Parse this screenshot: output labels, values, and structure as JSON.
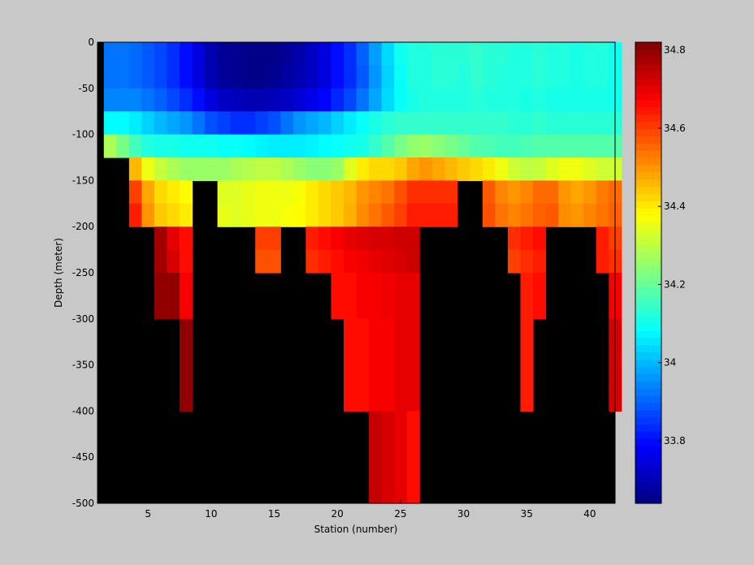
{
  "chart_data": {
    "type": "heatmap",
    "title": "",
    "xlabel": "Station (number)",
    "ylabel": "Depth (meter)",
    "xlim": [
      1,
      42
    ],
    "ylim": [
      -500,
      0
    ],
    "xticks": [
      5,
      10,
      15,
      20,
      25,
      30,
      35,
      40
    ],
    "yticks": [
      0,
      -50,
      -100,
      -150,
      -200,
      -250,
      -300,
      -350,
      -400,
      -450,
      -500
    ],
    "colorbar": {
      "colormap": "jet",
      "range": [
        33.64,
        34.82
      ],
      "ticks": [
        34.8,
        34.6,
        34.4,
        34.2,
        34,
        33.8
      ]
    },
    "background_color": "#000000",
    "stations": [
      2,
      3,
      4,
      5,
      6,
      7,
      8,
      9,
      10,
      11,
      12,
      13,
      14,
      15,
      16,
      17,
      18,
      19,
      20,
      21,
      22,
      23,
      24,
      25,
      26,
      27,
      28,
      29,
      30,
      31,
      32,
      33,
      34,
      35,
      36,
      37,
      38,
      39,
      40,
      41,
      42
    ],
    "depth_bin_tops": [
      -5,
      -25,
      -50,
      -75,
      -100,
      -125,
      -150,
      -175,
      -200,
      -225,
      -250,
      -275,
      -300,
      -325,
      -350,
      -375,
      -400,
      -425,
      -450,
      -475
    ],
    "bands": [
      {
        "depth": -5,
        "value": 33.92,
        "drift": [
          0,
          0,
          -0.01,
          -0.03,
          -0.05,
          -0.08,
          -0.12,
          -0.17,
          -0.22,
          -0.25,
          -0.26,
          -0.27,
          -0.27,
          -0.27,
          -0.25,
          -0.23,
          -0.2,
          -0.17,
          -0.12,
          -0.08,
          -0.02,
          0.05,
          0.12,
          0.18,
          0.2,
          0.2,
          0.21,
          0.21,
          0.21,
          0.22,
          0.21,
          0.21,
          0.2,
          0.2,
          0.21,
          0.2,
          0.2,
          0.19,
          0.2,
          0.2,
          0.18
        ]
      },
      {
        "depth": -25,
        "value": 33.92,
        "drift": [
          0,
          0,
          -0.01,
          -0.03,
          -0.05,
          -0.08,
          -0.12,
          -0.17,
          -0.22,
          -0.25,
          -0.26,
          -0.27,
          -0.27,
          -0.26,
          -0.24,
          -0.22,
          -0.2,
          -0.17,
          -0.12,
          -0.08,
          -0.03,
          0.04,
          0.11,
          0.17,
          0.2,
          0.2,
          0.21,
          0.21,
          0.2,
          0.22,
          0.21,
          0.2,
          0.2,
          0.2,
          0.21,
          0.2,
          0.2,
          0.19,
          0.2,
          0.2,
          0.18
        ]
      },
      {
        "depth": -50,
        "value": 33.94,
        "drift": [
          0,
          0,
          0,
          -0.02,
          -0.04,
          -0.07,
          -0.1,
          -0.14,
          -0.19,
          -0.22,
          -0.23,
          -0.24,
          -0.24,
          -0.23,
          -0.22,
          -0.2,
          -0.18,
          -0.15,
          -0.11,
          -0.07,
          -0.02,
          0.04,
          0.1,
          0.15,
          0.17,
          0.18,
          0.18,
          0.18,
          0.18,
          0.19,
          0.18,
          0.18,
          0.18,
          0.17,
          0.18,
          0.17,
          0.17,
          0.17,
          0.17,
          0.17,
          0.16
        ]
      },
      {
        "depth": -75,
        "value": 34.08,
        "drift": [
          0,
          0,
          -0.02,
          -0.05,
          -0.08,
          -0.1,
          -0.12,
          -0.16,
          -0.2,
          -0.22,
          -0.24,
          -0.24,
          -0.22,
          -0.2,
          -0.16,
          -0.12,
          -0.1,
          -0.08,
          -0.05,
          -0.02,
          0.01,
          0.03,
          0.05,
          0.06,
          0.06,
          0.06,
          0.06,
          0.06,
          0.06,
          0.06,
          0.06,
          0.06,
          0.05,
          0.05,
          0.06,
          0.05,
          0.05,
          0.05,
          0.05,
          0.05,
          0.05
        ]
      },
      {
        "depth": -100,
        "value": 34.28,
        "drift": [
          0,
          -0.06,
          -0.12,
          -0.16,
          -0.17,
          -0.17,
          -0.18,
          -0.18,
          -0.18,
          -0.19,
          -0.19,
          -0.2,
          -0.21,
          -0.22,
          -0.22,
          -0.22,
          -0.21,
          -0.2,
          -0.19,
          -0.18,
          -0.17,
          -0.14,
          -0.1,
          -0.06,
          -0.03,
          -0.02,
          -0.04,
          -0.06,
          -0.08,
          -0.1,
          -0.11,
          -0.12,
          -0.12,
          -0.11,
          -0.1,
          -0.1,
          -0.1,
          -0.1,
          -0.1,
          -0.1,
          -0.1
        ]
      },
      {
        "depth": -125,
        "value": 34.46,
        "drift": [
          null,
          null,
          0,
          -0.1,
          -0.15,
          -0.18,
          -0.2,
          -0.2,
          -0.2,
          -0.2,
          -0.18,
          -0.17,
          -0.16,
          -0.16,
          -0.18,
          -0.2,
          -0.22,
          -0.22,
          -0.2,
          -0.12,
          -0.06,
          -0.04,
          -0.04,
          -0.02,
          0.02,
          0.04,
          0.02,
          0,
          -0.02,
          -0.04,
          -0.06,
          -0.1,
          -0.14,
          -0.16,
          -0.15,
          -0.12,
          -0.1,
          -0.1,
          -0.12,
          -0.14,
          -0.14
        ]
      },
      {
        "depth": -150,
        "value": 34.6,
        "drift": [
          null,
          null,
          0,
          -0.12,
          -0.18,
          -0.2,
          -0.22,
          null,
          null,
          -0.26,
          -0.26,
          -0.25,
          -0.24,
          -0.24,
          -0.24,
          -0.23,
          -0.2,
          -0.18,
          -0.16,
          -0.14,
          -0.1,
          -0.08,
          -0.06,
          -0.02,
          0.02,
          0.02,
          0.02,
          0.02,
          null,
          null,
          -0.03,
          -0.08,
          -0.1,
          -0.08,
          -0.05,
          -0.05,
          -0.1,
          -0.12,
          -0.1,
          -0.07,
          -0.05
        ]
      },
      {
        "depth": -175,
        "value": 34.64,
        "drift": [
          null,
          null,
          0,
          -0.14,
          -0.2,
          -0.22,
          -0.24,
          null,
          null,
          -0.29,
          -0.3,
          -0.29,
          -0.28,
          -0.28,
          -0.27,
          -0.26,
          -0.24,
          -0.22,
          -0.2,
          -0.17,
          -0.13,
          -0.1,
          -0.07,
          -0.04,
          0,
          0,
          0,
          0,
          null,
          null,
          -0.06,
          -0.1,
          -0.12,
          -0.1,
          -0.08,
          -0.07,
          -0.13,
          -0.14,
          -0.12,
          -0.1,
          -0.08
        ]
      },
      {
        "depth": -200,
        "value": 34.78,
        "drift": [
          null,
          null,
          null,
          null,
          0,
          -0.08,
          -0.12,
          null,
          null,
          null,
          null,
          null,
          -0.18,
          -0.18,
          null,
          null,
          -0.14,
          -0.12,
          -0.1,
          -0.08,
          -0.07,
          -0.06,
          -0.06,
          -0.05,
          -0.05,
          null,
          null,
          null,
          null,
          null,
          null,
          null,
          -0.16,
          -0.14,
          -0.12,
          null,
          null,
          null,
          null,
          -0.14,
          -0.18
        ]
      },
      {
        "depth": -225,
        "value": 34.78,
        "drift": [
          null,
          null,
          null,
          null,
          0,
          -0.06,
          -0.12,
          null,
          null,
          null,
          null,
          null,
          -0.2,
          -0.2,
          null,
          null,
          -0.16,
          -0.14,
          -0.12,
          -0.1,
          -0.09,
          -0.08,
          -0.07,
          -0.06,
          -0.05,
          null,
          null,
          null,
          null,
          null,
          null,
          null,
          -0.18,
          -0.16,
          -0.14,
          null,
          null,
          null,
          null,
          -0.14,
          -0.16
        ]
      },
      {
        "depth": -250,
        "value": 34.8,
        "drift": [
          null,
          null,
          null,
          null,
          0,
          0,
          -0.12,
          null,
          null,
          null,
          null,
          null,
          null,
          null,
          null,
          null,
          null,
          null,
          -0.14,
          -0.14,
          -0.12,
          -0.12,
          -0.11,
          -0.1,
          -0.1,
          null,
          null,
          null,
          null,
          null,
          null,
          null,
          null,
          -0.16,
          -0.14,
          null,
          null,
          null,
          null,
          null,
          -0.12
        ]
      },
      {
        "depth": -275,
        "value": 34.8,
        "drift": [
          null,
          null,
          null,
          null,
          0,
          0,
          -0.12,
          null,
          null,
          null,
          null,
          null,
          null,
          null,
          null,
          null,
          null,
          null,
          -0.14,
          -0.14,
          -0.12,
          -0.12,
          -0.11,
          -0.1,
          -0.1,
          null,
          null,
          null,
          null,
          null,
          null,
          null,
          null,
          -0.16,
          -0.14,
          null,
          null,
          null,
          null,
          null,
          -0.12
        ]
      },
      {
        "depth": -300,
        "value": 34.8,
        "drift": [
          null,
          null,
          null,
          null,
          null,
          null,
          0,
          null,
          null,
          null,
          null,
          null,
          null,
          null,
          null,
          null,
          null,
          null,
          null,
          -0.14,
          -0.14,
          -0.12,
          -0.12,
          -0.1,
          -0.1,
          null,
          null,
          null,
          null,
          null,
          null,
          null,
          null,
          -0.16,
          null,
          null,
          null,
          null,
          null,
          null,
          -0.08
        ]
      },
      {
        "depth": -325,
        "value": 34.8,
        "drift": [
          null,
          null,
          null,
          null,
          null,
          null,
          0,
          null,
          null,
          null,
          null,
          null,
          null,
          null,
          null,
          null,
          null,
          null,
          null,
          -0.14,
          -0.14,
          -0.12,
          -0.12,
          -0.1,
          -0.1,
          null,
          null,
          null,
          null,
          null,
          null,
          null,
          null,
          -0.16,
          null,
          null,
          null,
          null,
          null,
          null,
          -0.08
        ]
      },
      {
        "depth": -350,
        "value": 34.8,
        "drift": [
          null,
          null,
          null,
          null,
          null,
          null,
          0,
          null,
          null,
          null,
          null,
          null,
          null,
          null,
          null,
          null,
          null,
          null,
          null,
          -0.14,
          -0.14,
          -0.12,
          -0.12,
          -0.1,
          -0.1,
          null,
          null,
          null,
          null,
          null,
          null,
          null,
          null,
          -0.16,
          null,
          null,
          null,
          null,
          null,
          null,
          -0.08
        ]
      },
      {
        "depth": -375,
        "value": 34.8,
        "drift": [
          null,
          null,
          null,
          null,
          null,
          null,
          0,
          null,
          null,
          null,
          null,
          null,
          null,
          null,
          null,
          null,
          null,
          null,
          null,
          -0.14,
          -0.14,
          -0.12,
          -0.12,
          -0.1,
          -0.1,
          null,
          null,
          null,
          null,
          null,
          null,
          null,
          null,
          -0.16,
          null,
          null,
          null,
          null,
          null,
          null,
          -0.08
        ]
      },
      {
        "depth": -400,
        "value": 34.74,
        "drift": [
          null,
          null,
          null,
          null,
          null,
          null,
          null,
          null,
          null,
          null,
          null,
          null,
          null,
          null,
          null,
          null,
          null,
          null,
          null,
          null,
          null,
          0,
          -0.02,
          -0.04,
          -0.08,
          null,
          null,
          null,
          null,
          null,
          null,
          null,
          null,
          null,
          null,
          null,
          null,
          null,
          null,
          null,
          null
        ]
      },
      {
        "depth": -425,
        "value": 34.74,
        "drift": [
          null,
          null,
          null,
          null,
          null,
          null,
          null,
          null,
          null,
          null,
          null,
          null,
          null,
          null,
          null,
          null,
          null,
          null,
          null,
          null,
          null,
          0,
          -0.02,
          -0.04,
          -0.08,
          null,
          null,
          null,
          null,
          null,
          null,
          null,
          null,
          null,
          null,
          null,
          null,
          null,
          null,
          null,
          null
        ]
      },
      {
        "depth": -450,
        "value": 34.74,
        "drift": [
          null,
          null,
          null,
          null,
          null,
          null,
          null,
          null,
          null,
          null,
          null,
          null,
          null,
          null,
          null,
          null,
          null,
          null,
          null,
          null,
          null,
          0,
          -0.02,
          -0.04,
          -0.08,
          null,
          null,
          null,
          null,
          null,
          null,
          null,
          null,
          null,
          null,
          null,
          null,
          null,
          null,
          null,
          null
        ]
      },
      {
        "depth": -475,
        "value": 34.74,
        "drift": [
          null,
          null,
          null,
          null,
          null,
          null,
          null,
          null,
          null,
          null,
          null,
          null,
          null,
          null,
          null,
          null,
          null,
          null,
          null,
          null,
          null,
          0,
          -0.02,
          -0.04,
          -0.08,
          null,
          null,
          null,
          null,
          null,
          null,
          null,
          null,
          null,
          null,
          null,
          null,
          null,
          null,
          null,
          null
        ]
      }
    ]
  }
}
